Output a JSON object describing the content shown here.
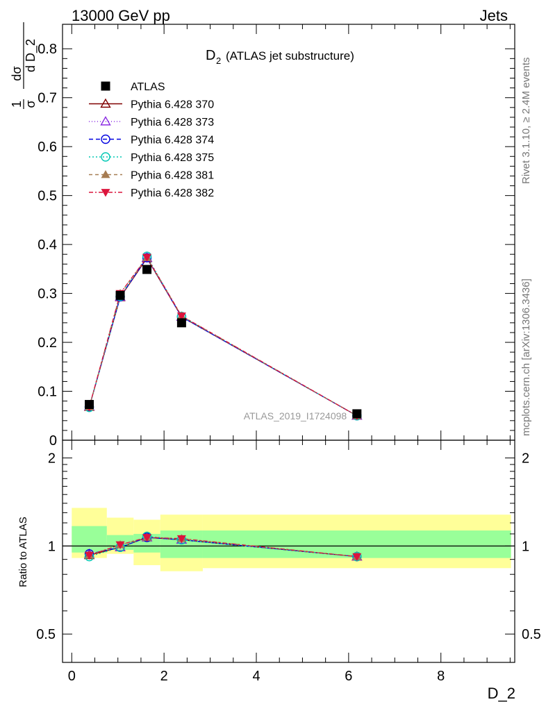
{
  "header": {
    "energy": "13000 GeV pp",
    "process": "Jets",
    "title_main": "D",
    "title_sub": "2",
    "title_rest": "(ATLAS jet substructure)",
    "rivet": "Rivet 3.1.10, ≥ 2.4M events",
    "mcplots": "mcplots.cern.ch [arXiv:1306.3436]",
    "analysis": "ATLAS_2019_I1724098"
  },
  "chart_data": [
    {
      "type": "line",
      "panel": "main",
      "ylabel": "1/σ dσ/d D_2",
      "xlim": [
        -0.2,
        9.6
      ],
      "ylim": [
        0,
        0.85
      ],
      "yticks": [
        0,
        0.1,
        0.2,
        0.3,
        0.4,
        0.5,
        0.6,
        0.7,
        0.8
      ],
      "ytick_labels": [
        "0",
        "0.1",
        "0.2",
        "0.3",
        "0.4",
        "0.5",
        "0.6",
        "0.7",
        "0.8"
      ],
      "legend_position": "top-left",
      "data": {
        "name": "ATLAS",
        "x": [
          0.38,
          1.05,
          1.63,
          2.38,
          6.18
        ],
        "y": [
          0.073,
          0.296,
          0.349,
          0.24,
          0.054
        ],
        "color": "#000000"
      },
      "series": [
        {
          "name": "Pythia 6.428 370",
          "color": "#800000",
          "marker": "triangle-up-open",
          "dash": "",
          "y": [
            0.068,
            0.292,
            0.372,
            0.252,
            0.05
          ]
        },
        {
          "name": "Pythia 6.428 373",
          "color": "#8a2be2",
          "marker": "triangle-up-open",
          "dash": "1,3",
          "y": [
            0.069,
            0.293,
            0.373,
            0.252,
            0.05
          ]
        },
        {
          "name": "Pythia 6.428 374",
          "color": "#0000e0",
          "marker": "circle-open",
          "dash": "6,4",
          "y": [
            0.068,
            0.293,
            0.373,
            0.252,
            0.05
          ]
        },
        {
          "name": "Pythia 6.428 375",
          "color": "#00c8b4",
          "marker": "circle-open",
          "dash": "2,3",
          "y": [
            0.067,
            0.294,
            0.376,
            0.253,
            0.05
          ]
        },
        {
          "name": "Pythia 6.428 381",
          "color": "#a67c52",
          "marker": "triangle-up-filled",
          "dash": "5,4",
          "y": [
            0.068,
            0.3,
            0.373,
            0.254,
            0.05
          ]
        },
        {
          "name": "Pythia 6.428 382",
          "color": "#dc143c",
          "marker": "triangle-down-filled",
          "dash": "6,3,2,3",
          "y": [
            0.068,
            0.3,
            0.374,
            0.254,
            0.05
          ]
        }
      ]
    },
    {
      "type": "line",
      "panel": "ratio",
      "xlabel": "D_2",
      "ylabel": "Ratio to ATLAS",
      "xlim": [
        -0.2,
        9.6
      ],
      "ylim": [
        0.4,
        2.3
      ],
      "xticks": [
        0,
        2,
        4,
        6,
        8
      ],
      "xtick_labels": [
        "0",
        "2",
        "4",
        "6",
        "8"
      ],
      "ytick_labels": [
        "0.5",
        "1",
        "2"
      ],
      "yticks": [
        0.5,
        1,
        2
      ],
      "bands": [
        {
          "x0": 0.0,
          "x1": 0.76,
          "inner": [
            0.95,
            1.17
          ],
          "outer": [
            0.91,
            1.35
          ]
        },
        {
          "x0": 0.76,
          "x1": 1.34,
          "inner": [
            0.97,
            1.09
          ],
          "outer": [
            0.94,
            1.25
          ]
        },
        {
          "x0": 1.34,
          "x1": 1.92,
          "inner": [
            0.95,
            1.1
          ],
          "outer": [
            0.86,
            1.23
          ]
        },
        {
          "x0": 1.92,
          "x1": 2.84,
          "inner": [
            0.91,
            1.13
          ],
          "outer": [
            0.82,
            1.28
          ]
        },
        {
          "x0": 2.84,
          "x1": 9.52,
          "inner": [
            0.91,
            1.13
          ],
          "outer": [
            0.84,
            1.28
          ]
        }
      ],
      "series_ratio": [
        [
          0.93,
          0.99,
          1.07,
          1.05,
          0.92
        ],
        [
          0.94,
          0.99,
          1.07,
          1.05,
          0.92
        ],
        [
          0.94,
          0.99,
          1.07,
          1.05,
          0.92
        ],
        [
          0.92,
          0.99,
          1.08,
          1.05,
          0.92
        ],
        [
          0.93,
          1.01,
          1.07,
          1.06,
          0.92
        ],
        [
          0.93,
          1.01,
          1.07,
          1.06,
          0.92
        ]
      ]
    }
  ]
}
